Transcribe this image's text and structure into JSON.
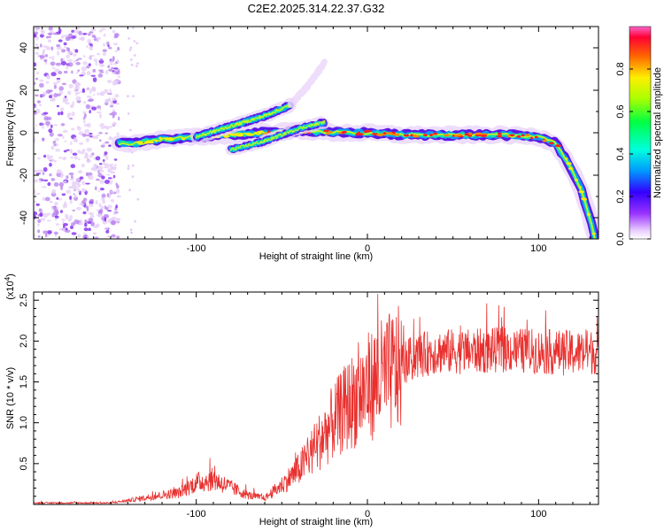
{
  "title": "C2E2.2025.314.22.37.G32",
  "chart_data": [
    {
      "type": "heatmap",
      "xlabel": "Height of straight line (km)",
      "ylabel": "Frequency (Hz)",
      "xlim": [
        -195,
        135
      ],
      "ylim": [
        -50,
        50
      ],
      "xticks": [
        -100,
        0,
        100
      ],
      "yticks": [
        -40,
        -20,
        0,
        20,
        40
      ],
      "colorbar": {
        "label": "Normalized spectral amplitude",
        "range": [
          0,
          1
        ],
        "ticks": [
          0.0,
          0.2,
          0.4,
          0.6,
          0.8
        ]
      },
      "traces": [
        {
          "name": "main-trace",
          "x": [
            -145,
            -135,
            -120,
            -100,
            -80,
            -60,
            -40,
            -20,
            0,
            20,
            40,
            60,
            80,
            100,
            110,
            118,
            125,
            130,
            133
          ],
          "y": [
            -5,
            -5,
            -3,
            -2,
            -1,
            0,
            1,
            0,
            0,
            -1,
            -1,
            -1,
            -1,
            -2,
            -5,
            -15,
            -27,
            -40,
            -50
          ]
        },
        {
          "name": "upper-branch",
          "x": [
            -100,
            -80,
            -60,
            -45
          ],
          "y": [
            -2,
            3,
            8,
            13
          ]
        },
        {
          "name": "faint-branch",
          "x": [
            -45,
            -35,
            -25
          ],
          "y": [
            13,
            22,
            33
          ]
        },
        {
          "name": "secondary-branch",
          "x": [
            -80,
            -60,
            -40,
            -25
          ],
          "y": [
            -8,
            -4,
            2,
            5
          ]
        }
      ]
    },
    {
      "type": "line",
      "xlabel": "Height of straight line (km)",
      "ylabel": "SNR (10 * v/v)",
      "yscale_label": "(x10",
      "yscale_exp": "4",
      "yscale_close": ")",
      "xlim": [
        -195,
        135
      ],
      "ylim": [
        0,
        2.6
      ],
      "xticks": [
        -100,
        0,
        100
      ],
      "yticks": [
        0.5,
        1.0,
        1.5,
        2.0,
        2.5
      ],
      "envelope": {
        "x": [
          -195,
          -150,
          -140,
          -120,
          -110,
          -100,
          -90,
          -80,
          -70,
          -60,
          -50,
          -40,
          -30,
          -20,
          -10,
          0,
          10,
          20,
          30,
          40,
          60,
          80,
          100,
          120,
          135
        ],
        "y": [
          0.02,
          0.02,
          0.05,
          0.12,
          0.15,
          0.28,
          0.32,
          0.22,
          0.12,
          0.08,
          0.25,
          0.45,
          0.75,
          1.05,
          1.3,
          1.5,
          1.65,
          1.75,
          1.85,
          1.9,
          1.9,
          1.92,
          1.9,
          1.88,
          1.9
        ]
      }
    }
  ]
}
